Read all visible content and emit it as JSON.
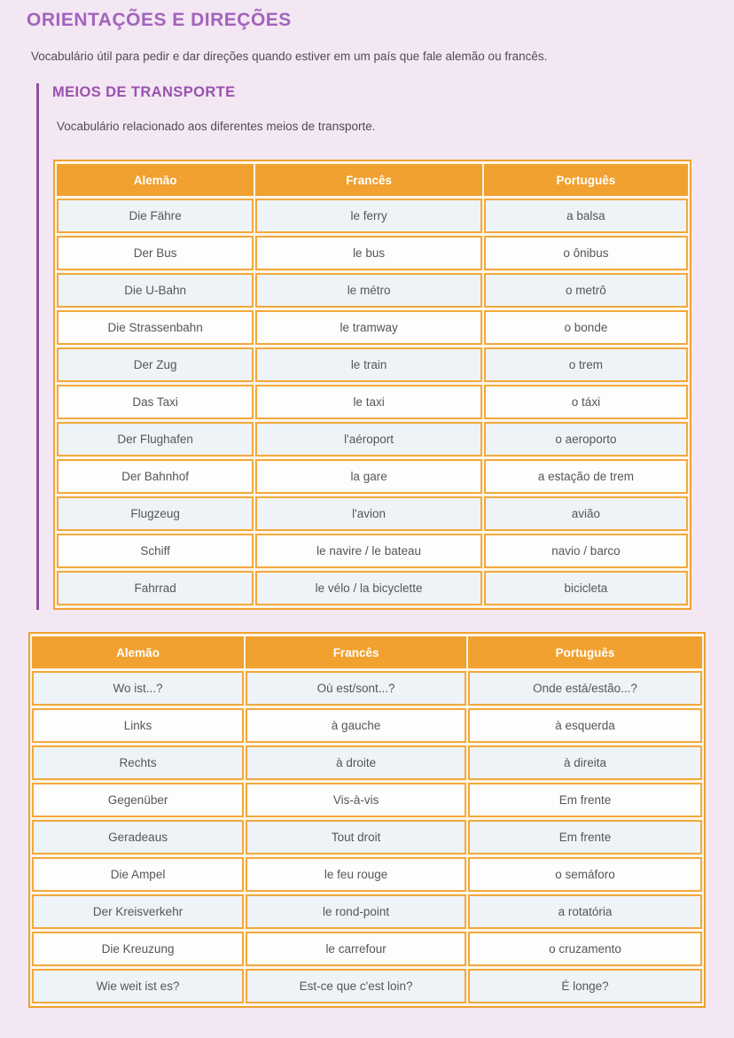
{
  "page": {
    "title": "ORIENTAÇÕES E DIREÇÕES",
    "subtitle": "Vocabulário útil para pedir e dar direções quando estiver em um país que fale alemão ou francês."
  },
  "section": {
    "heading": "MEIOS DE TRANSPORTE",
    "description": "Vocabulário relacionado aos diferentes meios de transporte."
  },
  "transport_table": {
    "headers": [
      "Alemão",
      "Francês",
      "Português"
    ],
    "rows": [
      [
        "Die Fähre",
        "le ferry",
        "a balsa"
      ],
      [
        "Der Bus",
        "le bus",
        "o ônibus"
      ],
      [
        "Die U-Bahn",
        "le métro",
        "o metrô"
      ],
      [
        "Die Strassenbahn",
        "le tramway",
        "o bonde"
      ],
      [
        "Der Zug",
        "le train",
        "o trem"
      ],
      [
        "Das Taxi",
        "le taxi",
        "o táxi"
      ],
      [
        "Der Flughafen",
        "l'aéroport",
        "o aeroporto"
      ],
      [
        "Der Bahnhof",
        "la gare",
        "a estação de trem"
      ],
      [
        "Flugzeug",
        "l'avion",
        "avião"
      ],
      [
        "Schiff",
        "le navire / le bateau",
        "navio / barco"
      ],
      [
        "Fahrrad",
        "le vélo / la bicyclette",
        "bicicleta"
      ]
    ]
  },
  "directions_table": {
    "headers": [
      "Alemão",
      "Francês",
      "Português"
    ],
    "rows": [
      [
        "Wo ist...?",
        "Où est/sont...?",
        "Onde está/estão...?"
      ],
      [
        "Links",
        "à gauche",
        "à esquerda"
      ],
      [
        "Rechts",
        "à droite",
        "à direita"
      ],
      [
        "Gegenüber",
        "Vis-à-vis",
        "Em frente"
      ],
      [
        "Geradeaus",
        "Tout droit",
        "Em frente"
      ],
      [
        "Die Ampel",
        "le feu rouge",
        "o semáforo"
      ],
      [
        "Der Kreisverkehr",
        "le rond-point",
        "a rotatória"
      ],
      [
        "Die Kreuzung",
        "le carrefour",
        "o cruzamento"
      ],
      [
        "Wie weit ist es?",
        "Est-ce que c'est loin?",
        "É longe?"
      ]
    ]
  },
  "colors": {
    "page_background": "#f3e7f4",
    "accent_orange": "#f0a12f",
    "border_orange": "#f2a93c",
    "purple_title": "#a263bc",
    "purple_heading": "#9b51ae",
    "purple_line": "#8d4f9f",
    "row_light": "#eef3f7",
    "row_white": "#fdfdfc",
    "header_text": "#ffffff",
    "body_text": "#4e4e50",
    "cell_text": "#565658"
  }
}
